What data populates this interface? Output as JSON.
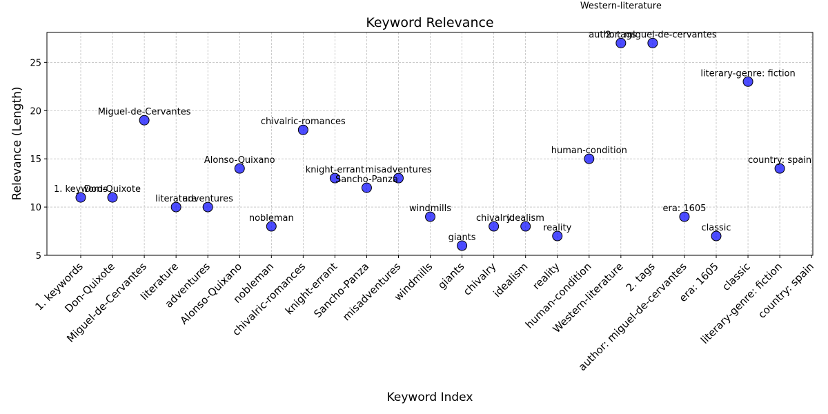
{
  "colors": {
    "marker_fill": "#0000ff",
    "marker_fill_opacity": 0.7,
    "marker_edge": "#000000",
    "grid": "#aaaaaa",
    "axis": "#000000",
    "background": "#ffffff"
  },
  "chart_data": {
    "type": "scatter",
    "title": "Keyword Relevance",
    "xlabel": "Keyword Index",
    "ylabel": "Relevance (Length)",
    "grid": true,
    "ylim": [
      5,
      28.1
    ],
    "yticks": [
      5,
      10,
      15,
      20,
      25
    ],
    "categories": [
      "1. keywords",
      "Don-Quixote",
      "Miguel-de-Cervantes",
      "literature",
      "adventures",
      "Alonso-Quixano",
      "nobleman",
      "chivalric-romances",
      "knight-errant",
      "Sancho-Panza",
      "misadventures",
      "windmills",
      "giants",
      "chivalry",
      "idealism",
      "reality",
      "human-condition",
      "2. tags",
      "author: miguel-de-cervantes",
      "era: 1605",
      "classic",
      "literary-genre: fiction",
      "country: spain"
    ],
    "tick_labels": [
      "1. keywords",
      "Don-Quixote",
      "Miguel-de-Cervantes",
      "literature",
      "adventures",
      "Alonso-Quixano",
      "nobleman",
      "chivalric-romances",
      "knight-errant",
      "Sancho-Panza",
      "misadventures",
      "windmills",
      "giants",
      "chivalry",
      "idealism",
      "reality",
      "human-condition",
      "Western-literature",
      "2. tags",
      "author: miguel-de-cervantes",
      "era: 1605",
      "classic",
      "literary-genre: fiction",
      "country: spain"
    ],
    "values": [
      11,
      11,
      19,
      10,
      10,
      14,
      8,
      18,
      13,
      12,
      13,
      9,
      6,
      8,
      8,
      7,
      15,
      27,
      27,
      9,
      7,
      23,
      14
    ],
    "point_labels": [
      "1. keywords",
      "Don-Quixote",
      "Miguel-de-Cervantes",
      "literature",
      "adventures",
      "Alonso-Quixano",
      "nobleman",
      "chivalric-romances",
      "knight-errant",
      "Sancho-Panza",
      "misadventures",
      "windmills",
      "giants",
      "chivalry",
      "idealism",
      "reality",
      "human-condition",
      "2. tags",
      "author: miguel-de-cervantes",
      "era: 1605",
      "classic",
      "literary-genre: fiction",
      "country: spain"
    ],
    "extra_points": [
      {
        "x_after": "human-condition",
        "y": 30,
        "label": "Western-literature"
      }
    ]
  }
}
